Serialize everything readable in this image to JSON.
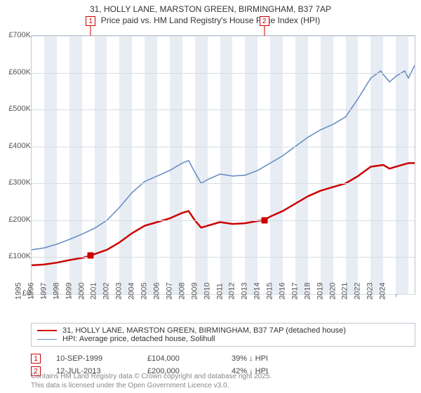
{
  "title_line1": "31, HOLLY LANE, MARSTON GREEN, BIRMINGHAM, B37 7AP",
  "title_line2": "Price paid vs. HM Land Registry's House Price Index (HPI)",
  "chart": {
    "type": "line",
    "background_color": "#ffffff",
    "band_color": "#e8edf4",
    "grid_color": "#d8dde4",
    "border_color": "#bfc7d1",
    "x_start_year": 1995,
    "x_end_year": 2025.5,
    "x_ticks": [
      1995,
      1996,
      1997,
      1998,
      1999,
      2000,
      2001,
      2002,
      2003,
      2004,
      2005,
      2006,
      2007,
      2008,
      2009,
      2010,
      2011,
      2012,
      2013,
      2014,
      2015,
      2016,
      2017,
      2018,
      2019,
      2020,
      2021,
      2022,
      2023,
      2024
    ],
    "y_min": 0,
    "y_max": 700,
    "y_ticks": [
      0,
      100,
      200,
      300,
      400,
      500,
      600,
      700
    ],
    "y_tick_labels": [
      "£0",
      "£100K",
      "£200K",
      "£300K",
      "£400K",
      "£500K",
      "£600K",
      "£700K"
    ],
    "series": [
      {
        "name": "price_paid",
        "label": "31, HOLLY LANE, MARSTON GREEN, BIRMINGHAM, B37 7AP (detached house)",
        "color": "#cc0000",
        "width": 2.5,
        "data": [
          [
            1995,
            78
          ],
          [
            1996,
            80
          ],
          [
            1997,
            85
          ],
          [
            1998,
            92
          ],
          [
            1999,
            98
          ],
          [
            1999.7,
            104
          ],
          [
            2000,
            108
          ],
          [
            2001,
            120
          ],
          [
            2002,
            140
          ],
          [
            2003,
            165
          ],
          [
            2004,
            185
          ],
          [
            2005,
            195
          ],
          [
            2006,
            205
          ],
          [
            2007,
            220
          ],
          [
            2007.5,
            225
          ],
          [
            2008,
            200
          ],
          [
            2008.5,
            180
          ],
          [
            2009,
            185
          ],
          [
            2010,
            195
          ],
          [
            2011,
            190
          ],
          [
            2012,
            192
          ],
          [
            2013,
            198
          ],
          [
            2013.5,
            200
          ],
          [
            2014,
            210
          ],
          [
            2015,
            225
          ],
          [
            2016,
            245
          ],
          [
            2017,
            265
          ],
          [
            2018,
            280
          ],
          [
            2019,
            290
          ],
          [
            2020,
            300
          ],
          [
            2021,
            320
          ],
          [
            2022,
            345
          ],
          [
            2023,
            350
          ],
          [
            2023.5,
            340
          ],
          [
            2024,
            345
          ],
          [
            2025,
            355
          ],
          [
            2025.5,
            355
          ]
        ]
      },
      {
        "name": "hpi",
        "label": "HPI: Average price, detached house, Solihull",
        "color": "#6a8fc5",
        "width": 1.6,
        "data": [
          [
            1995,
            120
          ],
          [
            1996,
            125
          ],
          [
            1997,
            135
          ],
          [
            1998,
            148
          ],
          [
            1999,
            162
          ],
          [
            2000,
            178
          ],
          [
            2001,
            200
          ],
          [
            2002,
            235
          ],
          [
            2003,
            275
          ],
          [
            2004,
            305
          ],
          [
            2005,
            320
          ],
          [
            2006,
            335
          ],
          [
            2007,
            355
          ],
          [
            2007.5,
            362
          ],
          [
            2008,
            330
          ],
          [
            2008.5,
            300
          ],
          [
            2009,
            310
          ],
          [
            2010,
            325
          ],
          [
            2011,
            320
          ],
          [
            2012,
            322
          ],
          [
            2013,
            335
          ],
          [
            2014,
            355
          ],
          [
            2015,
            375
          ],
          [
            2016,
            400
          ],
          [
            2017,
            425
          ],
          [
            2018,
            445
          ],
          [
            2019,
            460
          ],
          [
            2020,
            480
          ],
          [
            2021,
            530
          ],
          [
            2022,
            585
          ],
          [
            2022.8,
            605
          ],
          [
            2023,
            595
          ],
          [
            2023.5,
            575
          ],
          [
            2024,
            590
          ],
          [
            2024.7,
            605
          ],
          [
            2025,
            585
          ],
          [
            2025.5,
            620
          ]
        ]
      }
    ],
    "sales": [
      {
        "flag": "1",
        "year": 1999.7,
        "price_k": 104,
        "date": "10-SEP-1999",
        "price_label": "£104,000",
        "pct_label": "39% ↓ HPI"
      },
      {
        "flag": "2",
        "year": 2013.53,
        "price_k": 200,
        "date": "12-JUL-2013",
        "price_label": "£200,000",
        "pct_label": "42% ↓ HPI"
      }
    ]
  },
  "footer_line1": "Contains HM Land Registry data © Crown copyright and database right 2025.",
  "footer_line2": "This data is licensed under the Open Government Licence v3.0."
}
